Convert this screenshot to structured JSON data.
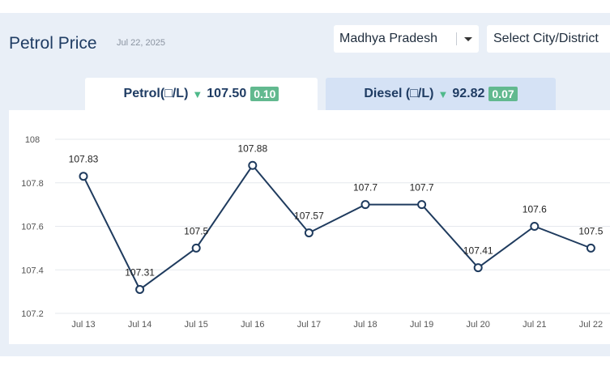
{
  "header": {
    "title": "Petrol Price",
    "date": "Jul 22, 2025",
    "state_select": "Madhya Pradesh",
    "city_select": "Select City/District"
  },
  "tabs": {
    "petrol": {
      "label": "Petrol(□/L)",
      "price": "107.50",
      "change": "0.10"
    },
    "diesel": {
      "label": "Diesel (□/L)",
      "price": "92.82",
      "change": "0.07"
    }
  },
  "colors": {
    "line": "#1f3b5e",
    "badge": "#62b98f",
    "arrow": "#4fb98a"
  },
  "chart_data": {
    "type": "line",
    "categories": [
      "Jul 13",
      "Jul 14",
      "Jul 15",
      "Jul 16",
      "Jul 17",
      "Jul 18",
      "Jul 19",
      "Jul 20",
      "Jul 21",
      "Jul 22"
    ],
    "series": [
      {
        "values": [
          107.83,
          107.31,
          107.5,
          107.88,
          107.57,
          107.7,
          107.7,
          107.41,
          107.6,
          107.5
        ]
      }
    ],
    "data_labels": [
      "107.83",
      "107.31",
      "107.5",
      "107.88",
      "107.57",
      "107.7",
      "107.7",
      "107.41",
      "107.6",
      "107.5"
    ],
    "y_ticks": [
      "108",
      "107.8",
      "107.6",
      "107.4",
      "107.2"
    ],
    "ylim": [
      107.2,
      108
    ],
    "grid": true
  }
}
